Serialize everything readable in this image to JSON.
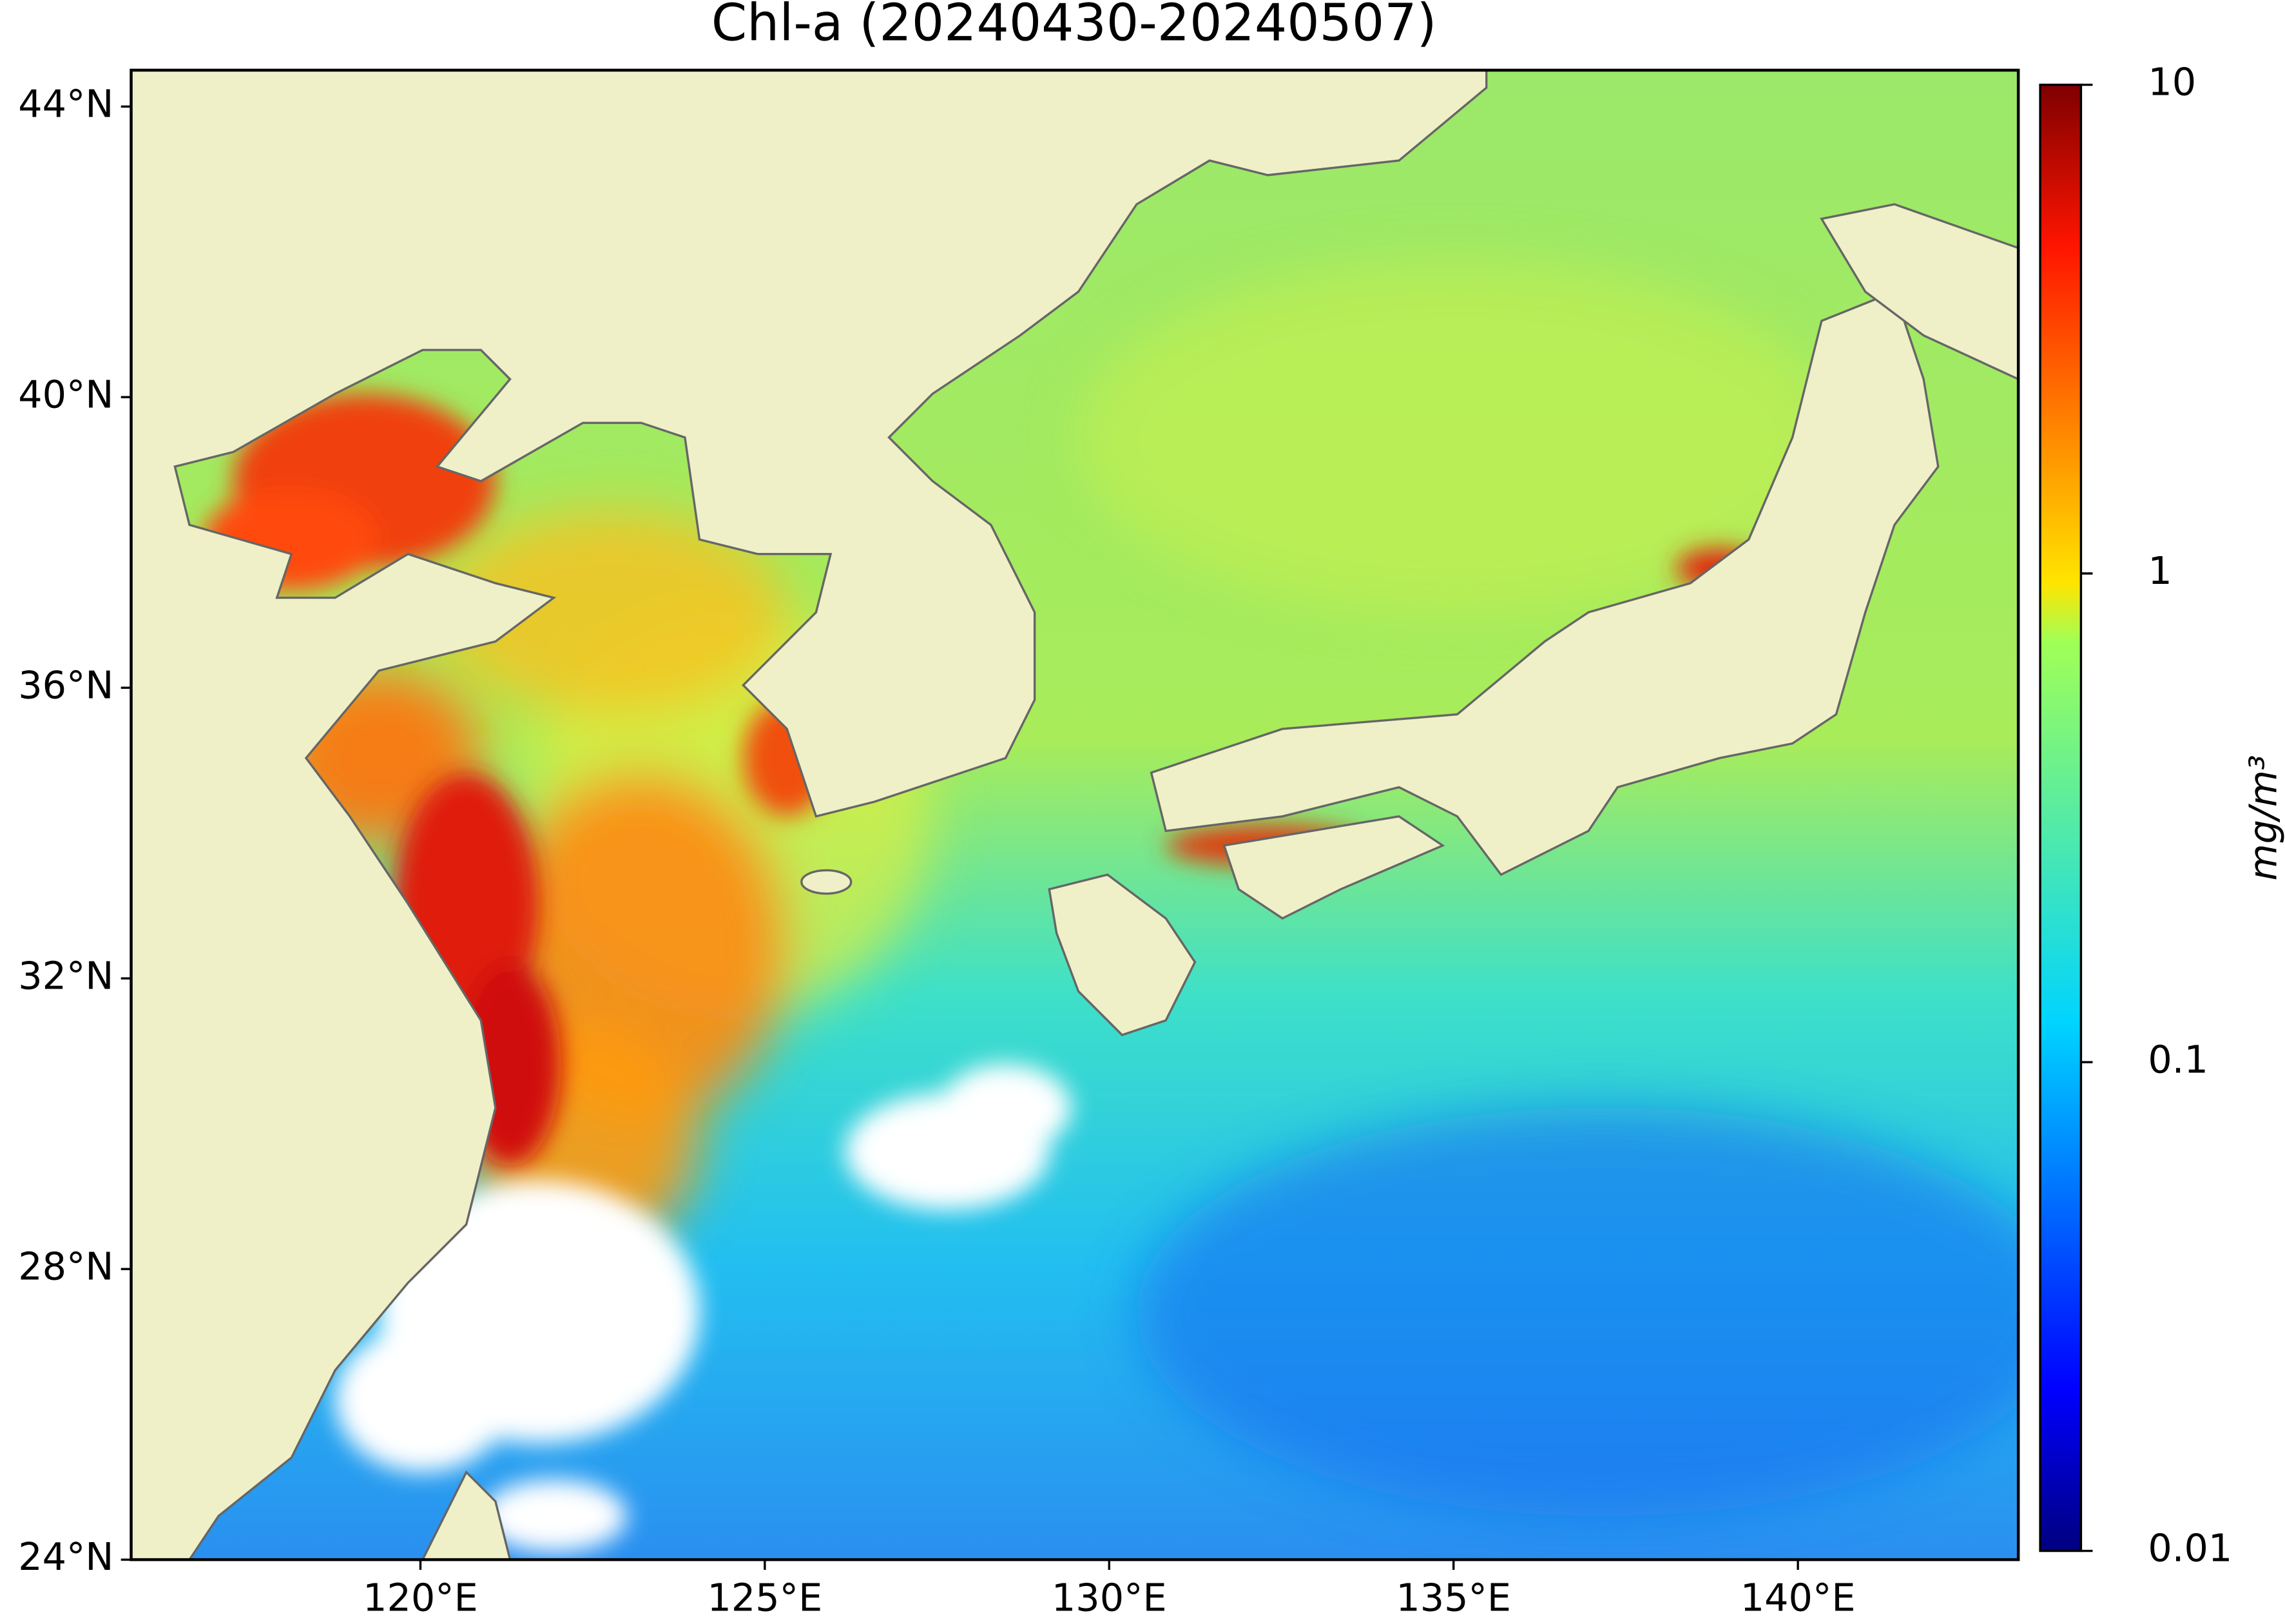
{
  "chart_data": {
    "type": "map",
    "title": "Chl-a (20240430-20240507)",
    "xlim": [
      115.8,
      143.2
    ],
    "ylim": [
      24,
      44.5
    ],
    "xticks": [
      {
        "value": 120,
        "label": "120°E"
      },
      {
        "value": 125,
        "label": "125°E"
      },
      {
        "value": 130,
        "label": "130°E"
      },
      {
        "value": 135,
        "label": "135°E"
      },
      {
        "value": 140,
        "label": "140°E"
      }
    ],
    "yticks": [
      {
        "value": 24,
        "label": "24°N"
      },
      {
        "value": 28,
        "label": "28°N"
      },
      {
        "value": 32,
        "label": "32°N"
      },
      {
        "value": 36,
        "label": "36°N"
      },
      {
        "value": 40,
        "label": "40°N"
      },
      {
        "value": 44,
        "label": "44°N"
      }
    ],
    "colorbar": {
      "label": "mg/m³",
      "lim": [
        0.01,
        10
      ],
      "ticks": [
        0.01,
        0.1,
        1,
        10
      ],
      "log": true,
      "colormap": "jet"
    }
  }
}
